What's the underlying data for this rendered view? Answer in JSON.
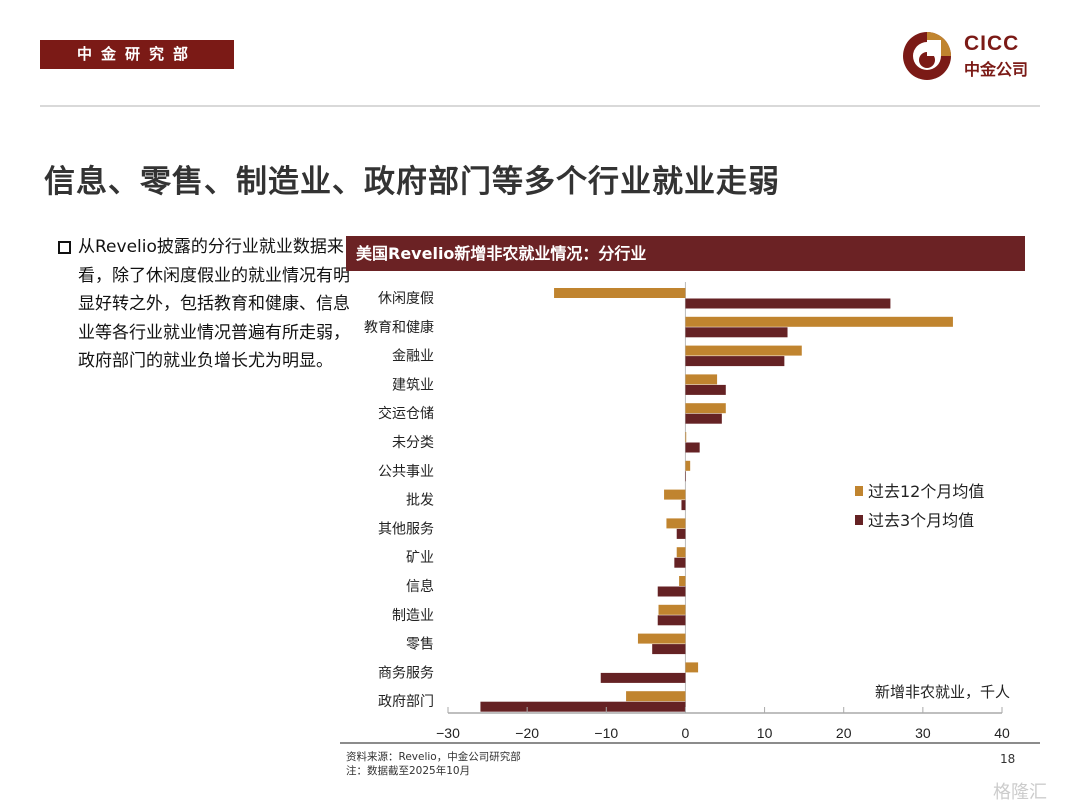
{
  "header": {
    "department": "中金研究部",
    "logo_en": "CICC",
    "logo_cn": "中金公司"
  },
  "title": "信息、零售、制造业、政府部门等多个行业就业走弱",
  "bullet": "从Revelio披露的分行业就业数据来看，除了休闲度假业的就业情况有明显好转之外，包括教育和健康、信息业等各行业就业情况普遍有所走弱，政府部门的就业负增长尤为明显。",
  "chart_data": {
    "type": "bar",
    "orientation": "horizontal",
    "title": "美国Revelio新增非农就业情况：分行业",
    "unit_label": "新增非农就业，千人",
    "categories": [
      "休闲度假",
      "教育和健康",
      "金融业",
      "建筑业",
      "交运仓储",
      "未分类",
      "公共事业",
      "批发",
      "其他服务",
      "矿业",
      "信息",
      "制造业",
      "零售",
      "商务服务",
      "政府部门"
    ],
    "series": [
      {
        "name": "过去12个月均值",
        "color": "#c0842f",
        "values": [
          -16.6,
          33.8,
          14.7,
          4.0,
          5.1,
          0.1,
          0.6,
          -2.7,
          -2.4,
          -1.1,
          -0.8,
          -3.4,
          -6.0,
          1.6,
          -7.5
        ]
      },
      {
        "name": "过去3个月均值",
        "color": "#652224",
        "values": [
          25.9,
          12.9,
          12.5,
          5.1,
          4.6,
          1.8,
          0.0,
          -0.5,
          -1.1,
          -1.4,
          -3.5,
          -3.5,
          -4.2,
          -10.7,
          -25.9
        ]
      }
    ],
    "xlim": [
      -30,
      40
    ],
    "xticks": [
      "−30",
      "−20",
      "−10",
      "0",
      "10",
      "20",
      "30",
      "40"
    ],
    "legend": "right"
  },
  "footer": {
    "source": "资料来源：Revelio，中金公司研究部",
    "note": "注：数据截至2025年10月",
    "page": "18"
  },
  "watermark": "格隆汇"
}
